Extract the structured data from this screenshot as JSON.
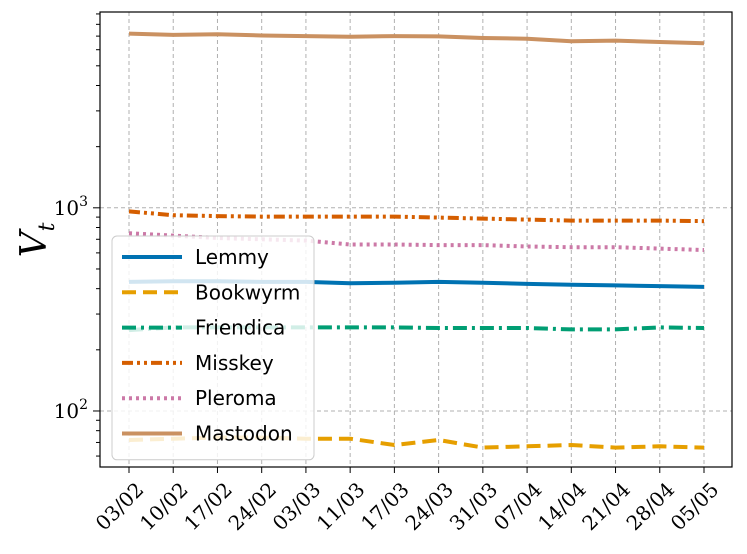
{
  "chart_data": {
    "type": "line",
    "ylabel": "V",
    "ylabel_sub": "t",
    "yscale": "log",
    "ylim": [
      53,
      9200
    ],
    "y_ticks": [
      {
        "value": 100,
        "base": "10",
        "exp": "2"
      },
      {
        "value": 1000,
        "base": "10",
        "exp": "3"
      }
    ],
    "categories": [
      "03/02",
      "10/02",
      "17/02",
      "24/02",
      "03/03",
      "11/03",
      "17/03",
      "24/03",
      "31/03",
      "07/04",
      "14/04",
      "21/04",
      "28/04",
      "05/05"
    ],
    "grid": true,
    "legend_position": "lower-left",
    "series": [
      {
        "name": "Lemmy",
        "color": "#0072b2",
        "style": "solid",
        "values": [
          432,
          435,
          435,
          432,
          432,
          425,
          428,
          432,
          428,
          422,
          418,
          415,
          412,
          408
        ]
      },
      {
        "name": "Bookwyrm",
        "color": "#e69f00",
        "style": "dashed",
        "values": [
          72,
          73,
          74,
          74,
          73,
          73,
          68,
          72,
          66,
          67,
          68,
          66,
          67,
          66
        ]
      },
      {
        "name": "Friendica",
        "color": "#009e73",
        "style": "dashdot",
        "values": [
          250,
          258,
          258,
          258,
          258,
          258,
          258,
          256,
          256,
          256,
          252,
          252,
          258,
          256
        ]
      },
      {
        "name": "Misskey",
        "color": "#d55e00",
        "style": "dashdotdot",
        "values": [
          960,
          920,
          910,
          905,
          905,
          905,
          905,
          895,
          885,
          875,
          865,
          865,
          865,
          860
        ]
      },
      {
        "name": "Pleroma",
        "color": "#cc79a7",
        "style": "dotted",
        "values": [
          750,
          730,
          710,
          700,
          690,
          660,
          660,
          655,
          655,
          645,
          640,
          640,
          630,
          620
        ]
      },
      {
        "name": "Mastodon",
        "color": "#ca9161",
        "style": "solid",
        "values": [
          7200,
          7100,
          7150,
          7050,
          7000,
          6950,
          7000,
          6980,
          6850,
          6800,
          6600,
          6650,
          6550,
          6450
        ]
      }
    ]
  }
}
